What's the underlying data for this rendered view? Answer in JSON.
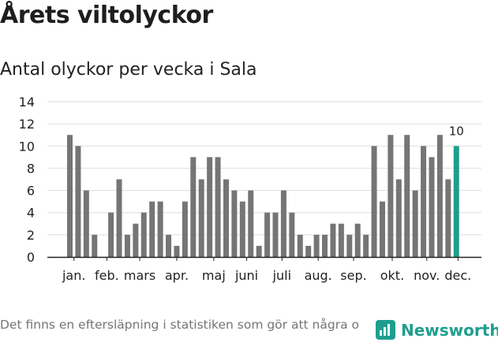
{
  "title": "Årets viltolyckor",
  "subtitle": "Antal olyckor per vecka i Sala",
  "footnote": "Det finns en eftersläpning i statistiken som gör att några olyckor kan saknas de senaste veckorna.",
  "brand": {
    "name": "Newsworthy",
    "icon": "newsworthy-logo-icon"
  },
  "colors": {
    "bar": "#757575",
    "highlight": "#1f9e8f",
    "grid": "#dddddd",
    "axis": "#222222"
  },
  "chart_data": {
    "type": "bar",
    "title": "Antal olyckor per vecka i Sala",
    "xlabel": "",
    "ylabel": "",
    "ylim": [
      0,
      14
    ],
    "yticks": [
      0,
      2,
      4,
      6,
      8,
      10,
      12,
      14
    ],
    "grid": true,
    "categories": [
      1,
      2,
      3,
      4,
      5,
      6,
      7,
      8,
      9,
      10,
      11,
      12,
      13,
      14,
      15,
      16,
      17,
      18,
      19,
      20,
      21,
      22,
      23,
      24,
      25,
      26,
      27,
      28,
      29,
      30,
      31,
      32,
      33,
      34,
      35,
      36,
      37,
      38,
      39,
      40,
      41,
      42,
      43,
      44,
      45,
      46,
      47,
      48
    ],
    "values": [
      11,
      10,
      6,
      2,
      0,
      4,
      7,
      2,
      3,
      4,
      5,
      5,
      2,
      1,
      5,
      9,
      7,
      9,
      9,
      7,
      6,
      5,
      6,
      1,
      4,
      4,
      6,
      4,
      2,
      1,
      2,
      2,
      3,
      3,
      2,
      3,
      2,
      10,
      5,
      11,
      7,
      11,
      6,
      10,
      9,
      11,
      7,
      10
    ],
    "month_labels": [
      {
        "label": "jan.",
        "week": 1.5
      },
      {
        "label": "feb.",
        "week": 5.5
      },
      {
        "label": "mars",
        "week": 9.5
      },
      {
        "label": "apr.",
        "week": 14
      },
      {
        "label": "maj",
        "week": 18.5
      },
      {
        "label": "juni",
        "week": 22.5
      },
      {
        "label": "juli",
        "week": 26.8
      },
      {
        "label": "aug.",
        "week": 31.2
      },
      {
        "label": "sep.",
        "week": 35.5
      },
      {
        "label": "okt.",
        "week": 40.2
      },
      {
        "label": "nov.",
        "week": 44.4
      },
      {
        "label": "dec.",
        "week": 48.2
      }
    ],
    "highlight_index": 47,
    "annotations": [
      {
        "week": 48,
        "text": "10"
      }
    ]
  }
}
